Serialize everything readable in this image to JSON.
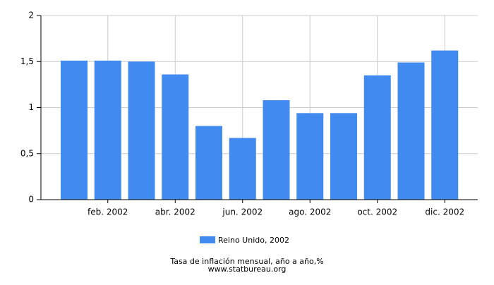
{
  "chart_data": {
    "type": "bar",
    "categories": [
      null,
      "feb. 2002",
      null,
      "abr. 2002",
      null,
      "jun. 2002",
      null,
      "ago. 2002",
      null,
      "oct. 2002",
      null,
      "dic. 2002"
    ],
    "series": [
      {
        "name": "Reino Unido, 2002",
        "color": "#418af0",
        "values": [
          1.51,
          1.51,
          1.5,
          1.36,
          0.8,
          0.67,
          1.08,
          0.94,
          0.94,
          1.35,
          1.49,
          1.62
        ]
      }
    ],
    "ylim": [
      0,
      2
    ],
    "yticks": [
      0,
      {
        "value": 0.5,
        "label": "0,5"
      },
      1,
      {
        "value": 1.5,
        "label": "1,5"
      },
      2
    ],
    "grid": true,
    "footer": [
      "Tasa de inflación mensual, año a año,%",
      "www.statbureau.org"
    ]
  }
}
